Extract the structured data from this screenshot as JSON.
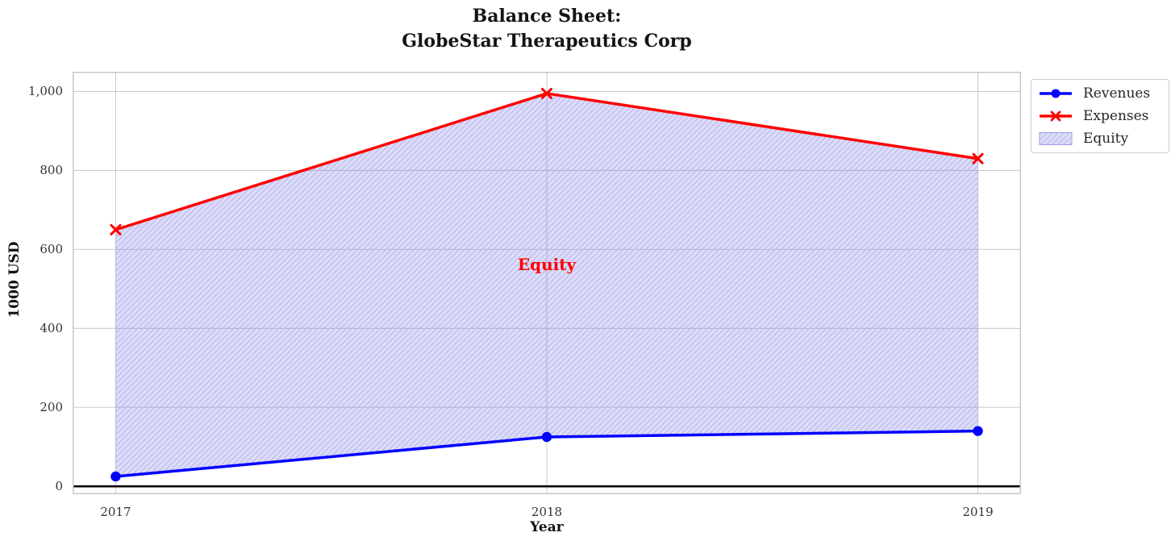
{
  "title": {
    "line1": "Balance Sheet:",
    "line2": "GlobeStar Therapeutics Corp"
  },
  "chart_data": {
    "type": "line",
    "x": [
      2017,
      2018,
      2019
    ],
    "series": [
      {
        "name": "Revenues",
        "values": [
          25,
          125,
          140
        ],
        "color": "#0000ff",
        "marker": "circle"
      },
      {
        "name": "Expenses",
        "values": [
          650,
          995,
          830
        ],
        "color": "#ff0000",
        "marker": "x"
      }
    ],
    "area": {
      "name": "Equity",
      "between": [
        "Expenses",
        "Revenues"
      ],
      "fill_color": "#0a0adc",
      "fill_opacity": 0.14,
      "hatch": "diagonal-forward",
      "hatch_color": "#bcbbec"
    },
    "annotation": {
      "text": "Equity",
      "x": 2018,
      "y": 562,
      "color": "#ff0000"
    },
    "xlabel": "Year",
    "ylabel": "1000 USD",
    "xticks": [
      2017,
      2018,
      2019
    ],
    "xtick_labels": [
      "2017",
      "2018",
      "2019"
    ],
    "yticks": [
      0,
      200,
      400,
      600,
      800,
      1000
    ],
    "ytick_labels": [
      "0",
      "200",
      "400",
      "600",
      "800",
      "1,000"
    ],
    "xlim": [
      2016.9,
      2019.1
    ],
    "ylim": [
      -20,
      1050
    ],
    "zero_line": {
      "y": 0,
      "color": "#000000"
    },
    "grid": true,
    "grid_color": "#cccccc",
    "spine_color": "#c8c8c8",
    "legend_position": "outside-top-right"
  }
}
